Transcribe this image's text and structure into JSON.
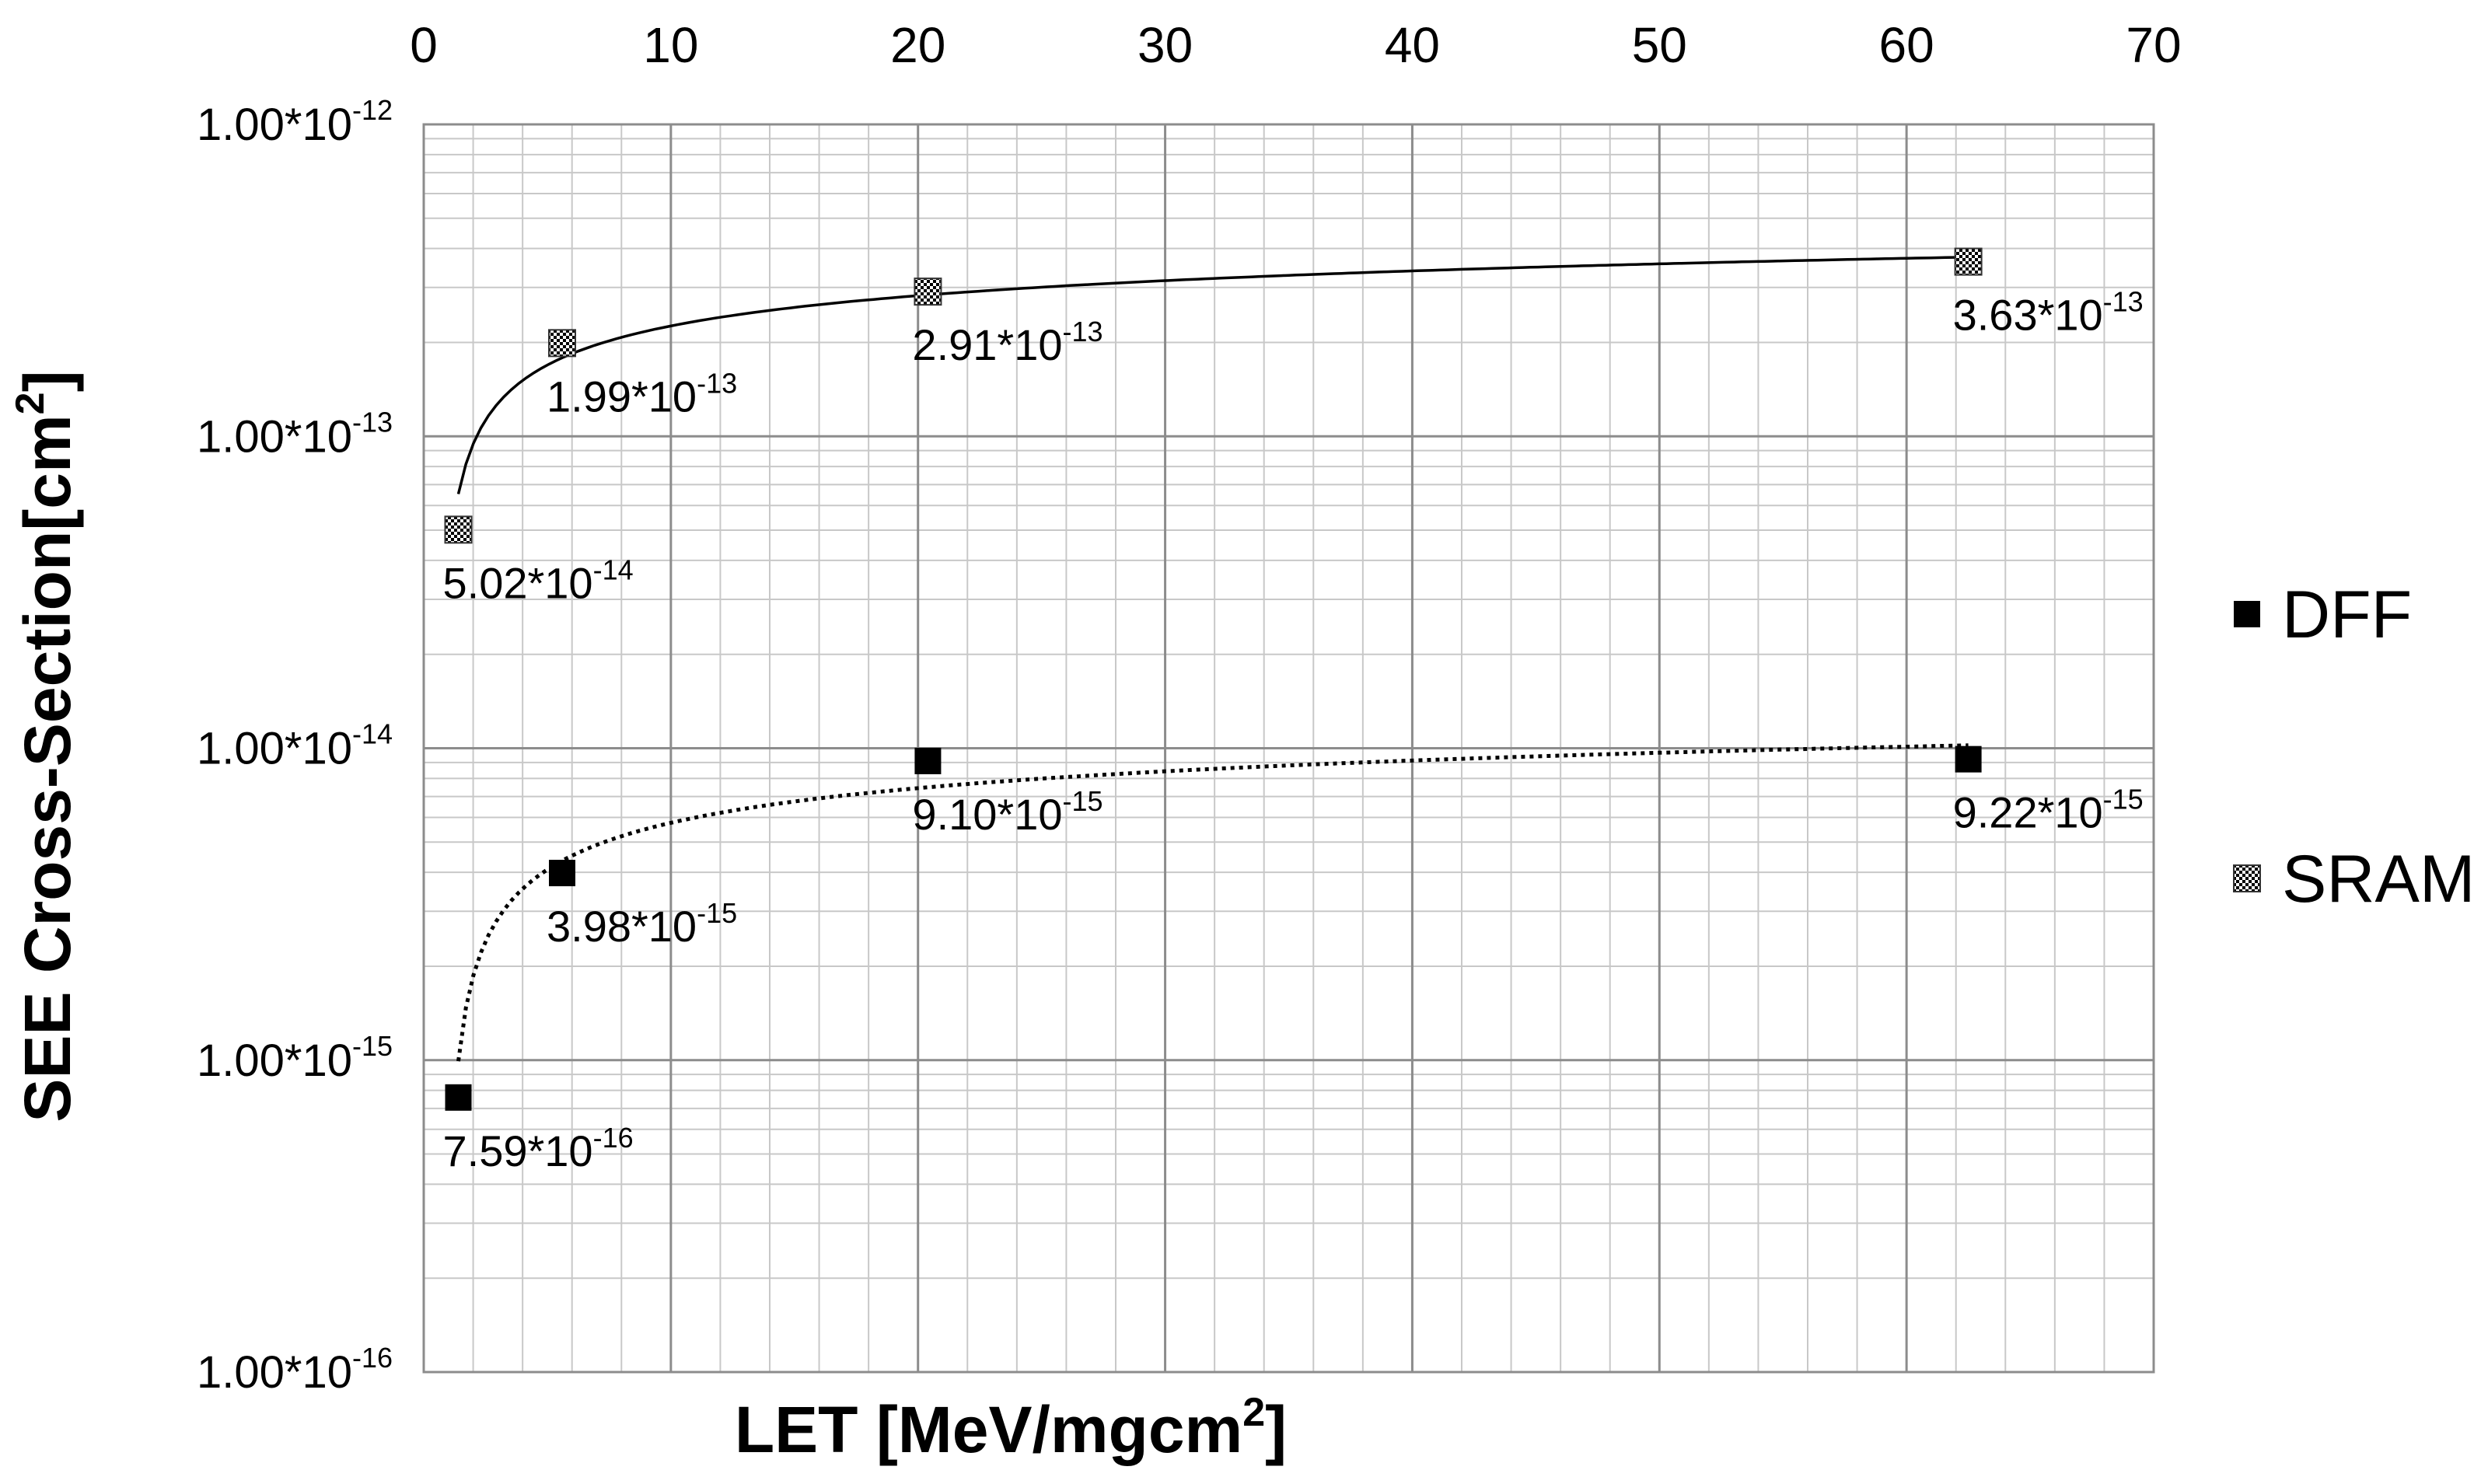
{
  "chart_data": {
    "type": "scatter",
    "xlabel": {
      "main": "LET [MeV/mgcm",
      "sup": "2",
      "end": "]"
    },
    "ylabel": {
      "main": "SEE Cross-Section[cm",
      "sup": "2",
      "end": "]"
    },
    "x_axis": {
      "position": "top",
      "range": [
        0,
        70
      ],
      "ticks": [
        0,
        10,
        20,
        30,
        40,
        50,
        60,
        70
      ]
    },
    "y_axis": {
      "scale": "log",
      "range": [
        1e-16,
        1e-12
      ],
      "ticks": [
        {
          "value": 1e-12,
          "base": "1.00*10",
          "exp": "-12"
        },
        {
          "value": 1e-13,
          "base": "1.00*10",
          "exp": "-13"
        },
        {
          "value": 1e-14,
          "base": "1.00*10",
          "exp": "-14"
        },
        {
          "value": 1e-15,
          "base": "1.00*10",
          "exp": "-15"
        },
        {
          "value": 1e-16,
          "base": "1.00*10",
          "exp": "-16"
        }
      ]
    },
    "grid": true,
    "legend": {
      "position": "right"
    },
    "series": [
      {
        "name": "DFF",
        "marker": "filled-square",
        "trendline": "log-dotted",
        "points": [
          {
            "x": 1.4,
            "y": 7.59e-16,
            "base": "7.59*10",
            "exp": "-16"
          },
          {
            "x": 5.6,
            "y": 3.98e-15,
            "base": "3.98*10",
            "exp": "-15"
          },
          {
            "x": 20.4,
            "y": 9.1e-15,
            "base": "9.10*10",
            "exp": "-15"
          },
          {
            "x": 62.5,
            "y": 9.22e-15,
            "base": "9.22*10",
            "exp": "-15"
          }
        ]
      },
      {
        "name": "SRAM",
        "marker": "checkered-square",
        "trendline": "log-solid",
        "points": [
          {
            "x": 1.4,
            "y": 5.02e-14,
            "base": "5.02*10",
            "exp": "-14"
          },
          {
            "x": 5.6,
            "y": 1.99e-13,
            "base": "1.99*10",
            "exp": "-13"
          },
          {
            "x": 20.4,
            "y": 2.91e-13,
            "base": "2.91*10",
            "exp": "-13"
          },
          {
            "x": 62.5,
            "y": 3.63e-13,
            "base": "3.63*10",
            "exp": "-13"
          }
        ]
      }
    ]
  }
}
